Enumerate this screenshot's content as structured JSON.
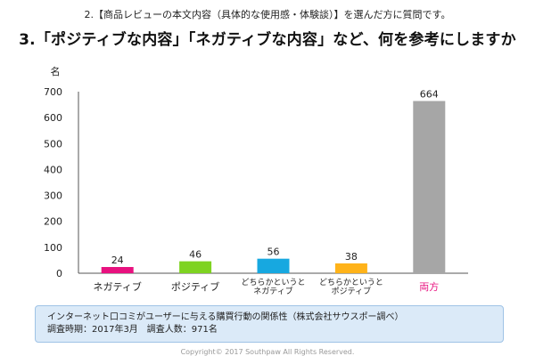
{
  "pre_title": "2.【商品レビューの本文内容（具体的な使用感・体験談）】を選んだ方に質問です。",
  "main_title": "3.「ポジティブな内容」「ネガティブな内容」など、何を参考にしますか",
  "note": {
    "line1": "インターネット口コミがユーザーに与える購買行動の関係性（株式会社サウスポー調べ）",
    "line2": "調査時期：2017年3月　調査人数：971名"
  },
  "copyright": "Copyright© 2017 Southpaw All Rights Reserved.",
  "chart_data": {
    "type": "bar",
    "ylabel": "名",
    "ylim": [
      0,
      700
    ],
    "yticks": [
      0,
      100,
      200,
      300,
      400,
      500,
      600,
      700
    ],
    "grid": false,
    "categories": [
      [
        "ネガティブ"
      ],
      [
        "ポジティブ"
      ],
      [
        "どちらかというと",
        "ネガティブ"
      ],
      [
        "どちらかというと",
        "ポジティブ"
      ],
      [
        "両方"
      ]
    ],
    "values": [
      24,
      46,
      56,
      38,
      664
    ],
    "bar_colors": [
      "#e8117f",
      "#7ed321",
      "#17a8e0",
      "#ffb31a",
      "#a6a6a6"
    ],
    "label_colors": [
      "#222222",
      "#222222",
      "#222222",
      "#222222",
      "#e8117f"
    ]
  }
}
